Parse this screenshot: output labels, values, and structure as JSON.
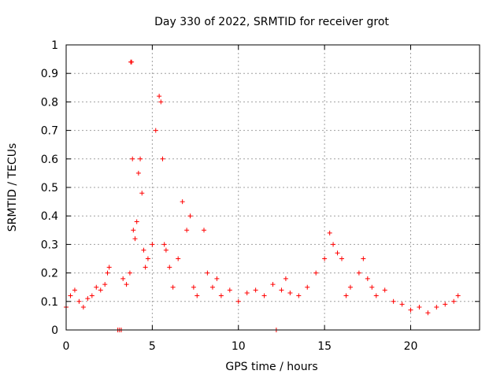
{
  "chart_data": {
    "type": "scatter",
    "title": "Day 330 of 2022, SRMTID for receiver grot",
    "xlabel": "GPS time / hours",
    "ylabel": "SRMTID / TECUs",
    "xlim": [
      0,
      24
    ],
    "ylim": [
      0,
      1
    ],
    "xticks": [
      0,
      5,
      10,
      15,
      20
    ],
    "xtick_labels": [
      "0",
      "5",
      "10",
      "15",
      "20"
    ],
    "yticks": [
      0,
      0.1,
      0.2,
      0.3,
      0.4,
      0.5,
      0.6,
      0.7,
      0.8,
      0.9,
      1
    ],
    "ytick_labels": [
      "0",
      "0.1",
      "0.2",
      "0.3",
      "0.4",
      "0.5",
      "0.6",
      "0.7",
      "0.8",
      "0.9",
      "1"
    ],
    "grid": true,
    "marker": "+",
    "color": "#ff0000",
    "series": [
      {
        "name": "SRMTID",
        "x": [
          0.0,
          0.25,
          0.5,
          0.75,
          1.0,
          1.25,
          1.5,
          1.75,
          2.0,
          2.25,
          2.4,
          2.5,
          3.0,
          3.1,
          3.2,
          3.3,
          3.5,
          3.7,
          3.75,
          3.8,
          3.85,
          3.9,
          4.0,
          4.1,
          4.2,
          4.3,
          4.4,
          4.5,
          4.6,
          4.75,
          5.0,
          5.2,
          5.4,
          5.5,
          5.6,
          5.7,
          5.8,
          6.0,
          6.2,
          6.5,
          6.75,
          7.0,
          7.2,
          7.4,
          7.6,
          8.0,
          8.2,
          8.5,
          8.75,
          9.0,
          9.5,
          10.0,
          10.5,
          11.0,
          11.5,
          12.0,
          12.2,
          12.5,
          12.75,
          13.0,
          13.5,
          14.0,
          14.5,
          15.0,
          15.3,
          15.5,
          15.75,
          16.0,
          16.25,
          16.5,
          17.0,
          17.25,
          17.5,
          17.75,
          18.0,
          18.5,
          19.0,
          19.5,
          20.0,
          20.5,
          21.0,
          21.5,
          22.0,
          22.5,
          22.75
        ],
        "y": [
          0.08,
          0.12,
          0.14,
          0.1,
          0.08,
          0.11,
          0.12,
          0.15,
          0.14,
          0.16,
          0.2,
          0.22,
          0.0,
          0.0,
          0.0,
          0.18,
          0.16,
          0.2,
          0.94,
          0.94,
          0.6,
          0.35,
          0.32,
          0.38,
          0.55,
          0.6,
          0.48,
          0.28,
          0.22,
          0.25,
          0.3,
          0.7,
          0.82,
          0.8,
          0.6,
          0.3,
          0.28,
          0.22,
          0.15,
          0.25,
          0.45,
          0.35,
          0.4,
          0.15,
          0.12,
          0.35,
          0.2,
          0.15,
          0.18,
          0.12,
          0.14,
          0.1,
          0.13,
          0.14,
          0.12,
          0.16,
          0.0,
          0.14,
          0.18,
          0.13,
          0.12,
          0.15,
          0.2,
          0.25,
          0.34,
          0.3,
          0.27,
          0.25,
          0.12,
          0.15,
          0.2,
          0.25,
          0.18,
          0.15,
          0.12,
          0.14,
          0.1,
          0.09,
          0.07,
          0.08,
          0.06,
          0.08,
          0.09,
          0.1,
          0.12
        ]
      }
    ]
  }
}
